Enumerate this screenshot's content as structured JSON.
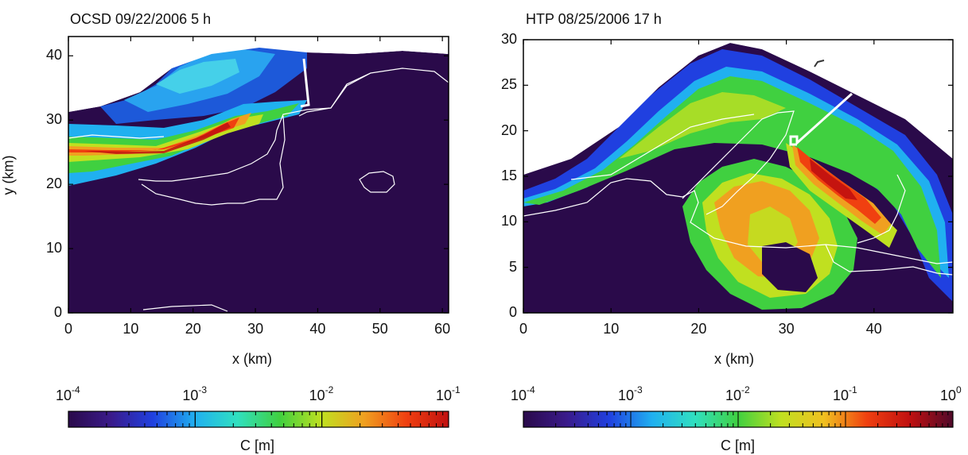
{
  "colors": {
    "background_field": "#2a0a4a",
    "contour": "#ffffff",
    "axis": "#000000"
  },
  "chart_data": [
    {
      "type": "heatmap",
      "title": "OCSD 09/22/2006 5 h",
      "xlabel": "x (km)",
      "ylabel": "y (km)",
      "xlim": [
        0,
        61
      ],
      "ylim": [
        0,
        43
      ],
      "xticks": [
        0,
        10,
        20,
        30,
        40,
        50,
        60
      ],
      "yticks": [
        0,
        10,
        20,
        30,
        40
      ],
      "colorbar": {
        "label": "C [m]",
        "scale": "log",
        "range": [
          0.0001,
          0.1
        ],
        "tick_values": [
          0.0001,
          0.001,
          0.01,
          0.1
        ],
        "tick_bases": [
          "10",
          "10",
          "10",
          "10"
        ],
        "tick_exps": [
          "-4",
          "-3",
          "-2",
          "-1"
        ],
        "colormap": [
          "#2a0a4a",
          "#3a1a8a",
          "#2040e0",
          "#20b0f0",
          "#30e0c0",
          "#40d040",
          "#c0e020",
          "#f0a020",
          "#f04010",
          "#c01010"
        ]
      }
    },
    {
      "type": "heatmap",
      "title": "HTP 08/25/2006 17 h",
      "xlabel": "x (km)",
      "ylabel": "",
      "xlim": [
        0,
        49
      ],
      "ylim": [
        0,
        30
      ],
      "xticks": [
        0,
        10,
        20,
        30,
        40
      ],
      "yticks": [
        0,
        5,
        10,
        15,
        20,
        25,
        30
      ],
      "colorbar": {
        "label": "C [m]",
        "scale": "log",
        "range": [
          0.0001,
          1
        ],
        "tick_values": [
          0.0001,
          0.001,
          0.01,
          0.1,
          1
        ],
        "tick_bases": [
          "10",
          "10",
          "10",
          "10",
          "10"
        ],
        "tick_exps": [
          "-4",
          "-3",
          "-2",
          "-1",
          "0"
        ],
        "colormap": [
          "#2a0a4a",
          "#3a1a8a",
          "#2040e0",
          "#20b0f0",
          "#30e0c0",
          "#40d040",
          "#c0e020",
          "#f0c020",
          "#f04010",
          "#c01010",
          "#500a2a"
        ]
      }
    }
  ]
}
